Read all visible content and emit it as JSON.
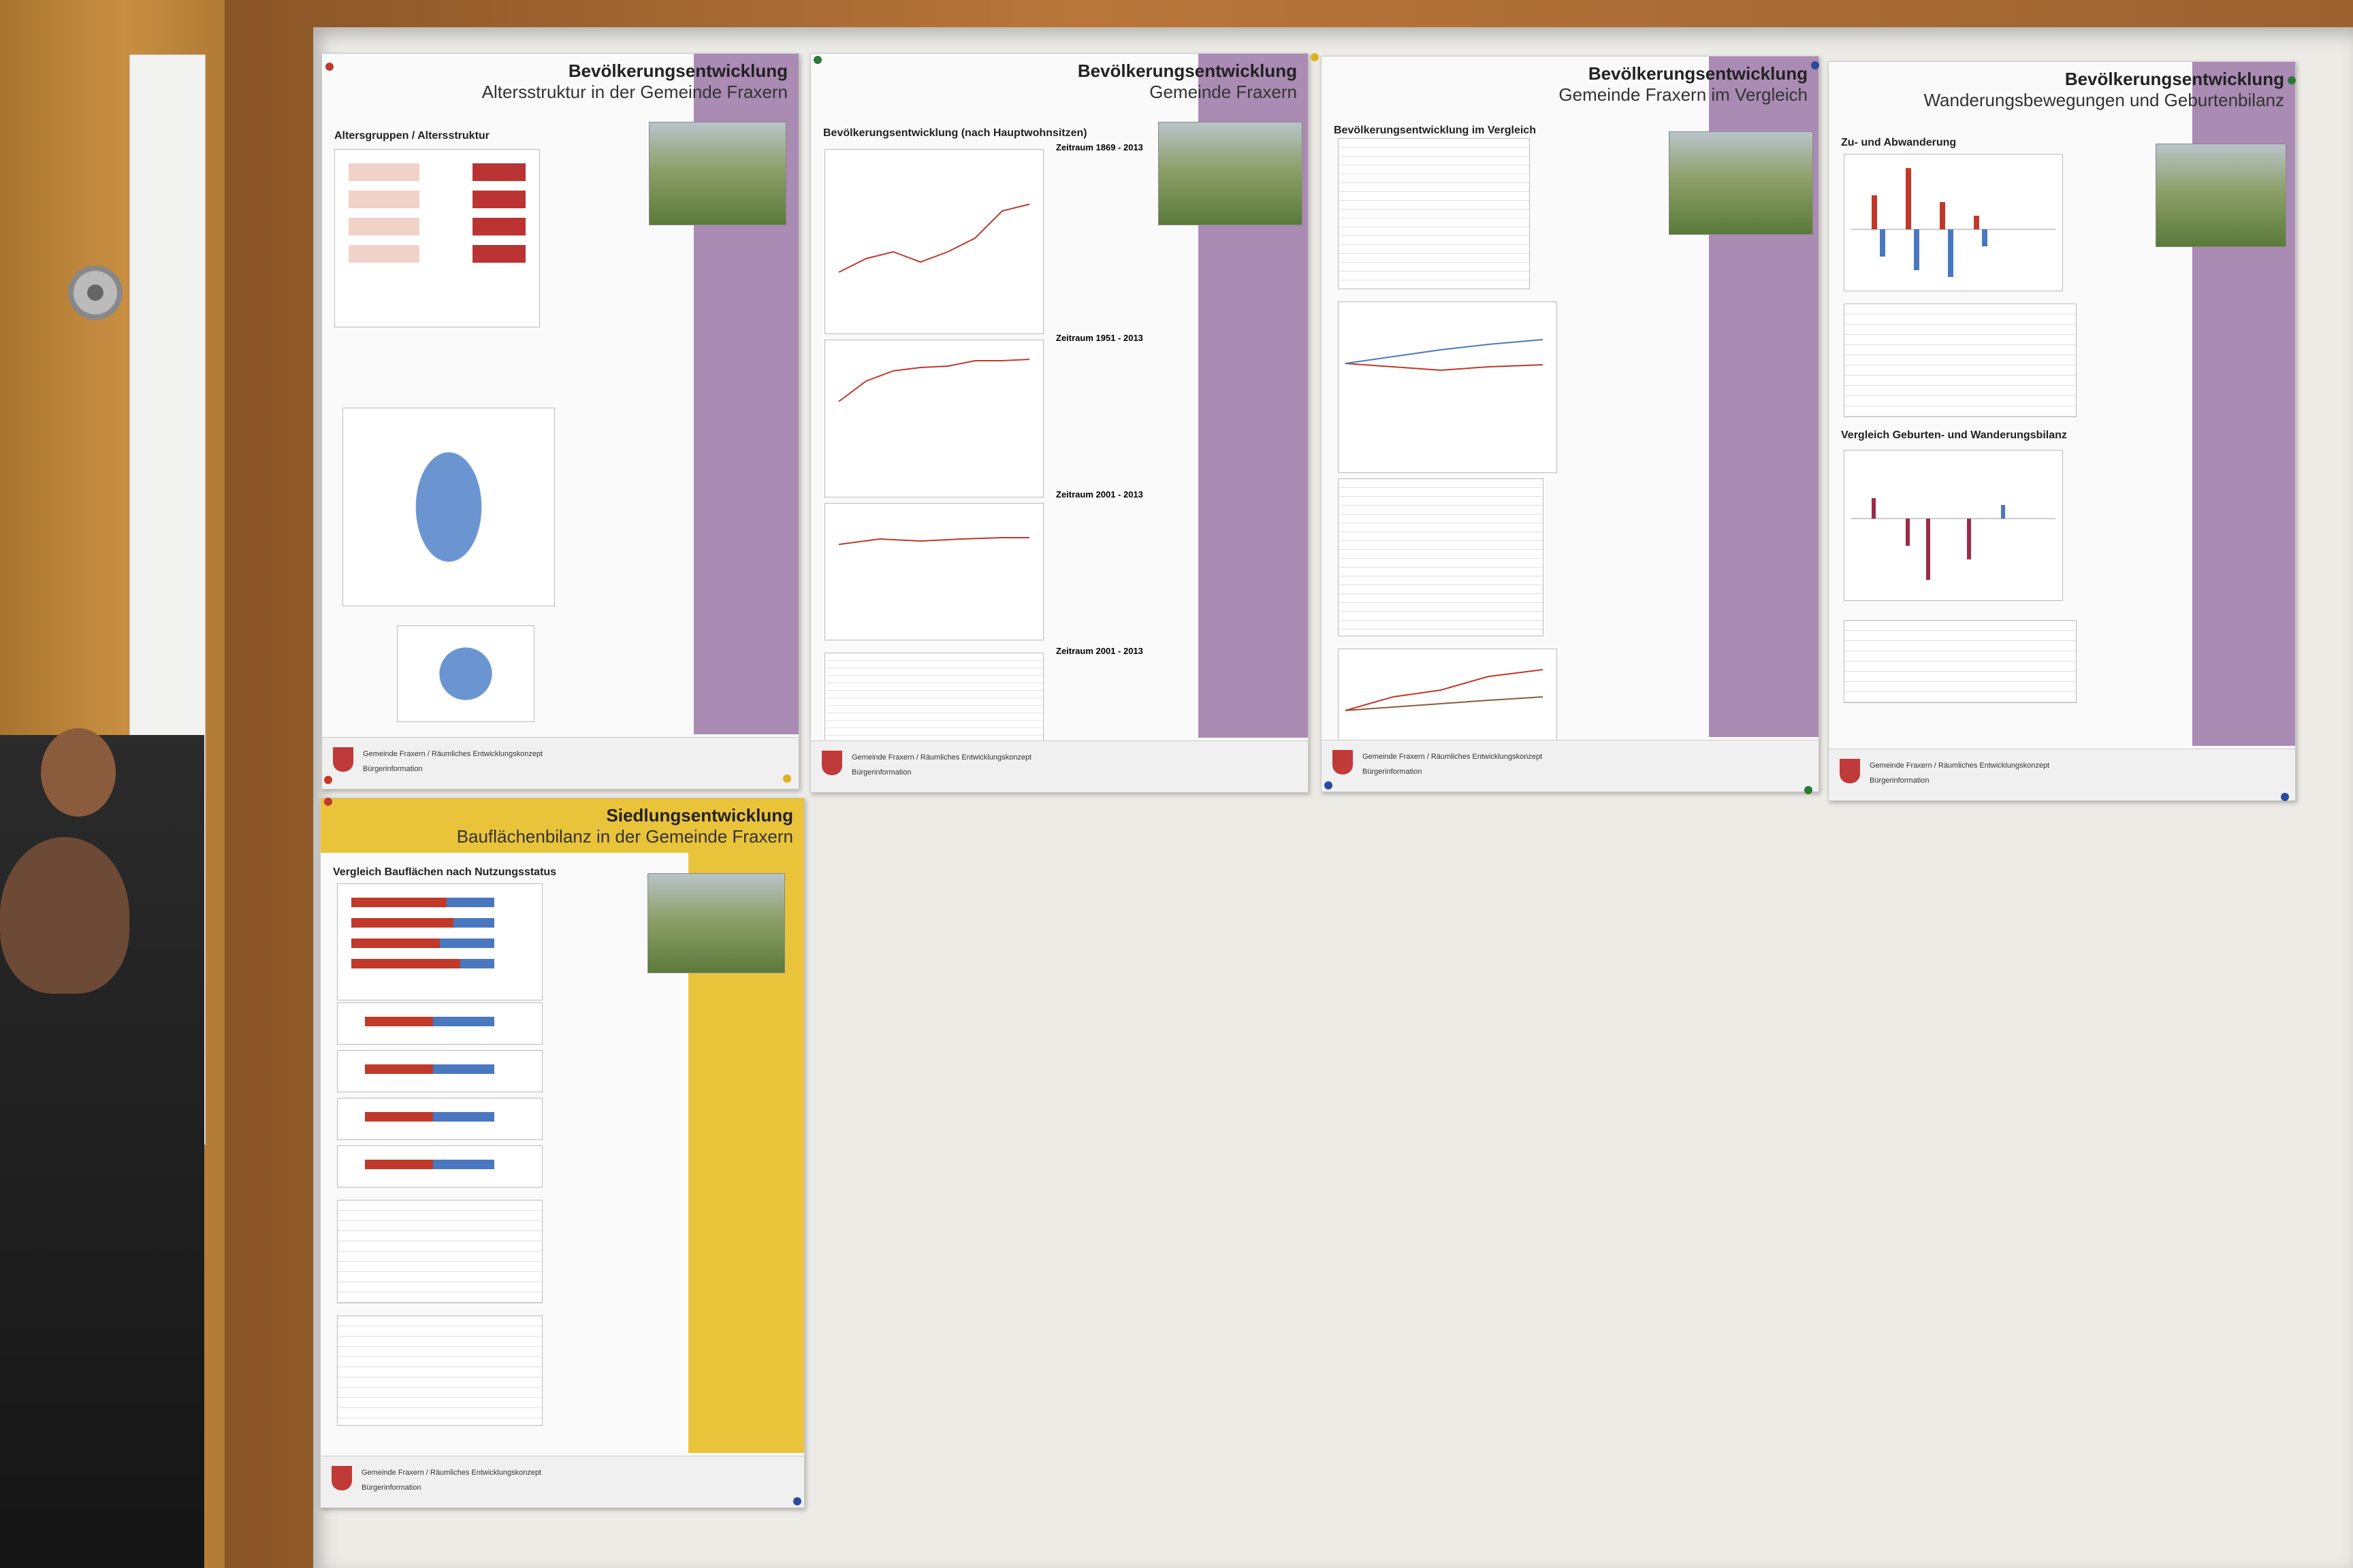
{
  "posters": [
    {
      "title": "Bevölkerungsentwicklung",
      "subtitle": "Altersstruktur in der Gemeinde Fraxern",
      "section": "Altersgruppen / Altersstruktur",
      "footer": "Gemeinde Fraxern / Räumliches Entwicklungskonzept",
      "footer2": "Bürgerinformation"
    },
    {
      "title": "Bevölkerungsentwicklung",
      "subtitle": "Gemeinde Fraxern",
      "section": "Bevölkerungsentwicklung (nach Hauptwohnsitzen)",
      "periods": [
        "Zeitraum 1869 - 2013",
        "Zeitraum 1951 - 2013",
        "Zeitraum 2001 - 2013",
        "Zeitraum 2001 - 2013"
      ],
      "footer": "Gemeinde Fraxern / Räumliches Entwicklungskonzept",
      "footer2": "Bürgerinformation"
    },
    {
      "title": "Bevölkerungsentwicklung",
      "subtitle": "Gemeinde Fraxern im Vergleich",
      "section": "Bevölkerungsentwicklung im Vergleich",
      "footer": "Gemeinde Fraxern / Räumliches Entwicklungskonzept",
      "footer2": "Bürgerinformation"
    },
    {
      "title": "Bevölkerungsentwicklung",
      "subtitle": "Wanderungsbewegungen und Geburtenbilanz",
      "section": "Zu- und Abwanderung",
      "section2": "Vergleich Geburten- und Wanderungsbilanz",
      "footer": "Gemeinde Fraxern / Räumliches Entwicklungskonzept",
      "footer2": "Bürgerinformation"
    },
    {
      "title": "Siedlungsentwicklung",
      "subtitle": "Bauflächenbilanz in der Gemeinde Fraxern",
      "section": "Vergleich Bauflächen nach Nutzungsstatus",
      "footer": "Gemeinde Fraxern / Räumliches Entwicklungskonzept",
      "footer2": "Bürgerinformation"
    }
  ],
  "colors": {
    "violet": "#a98bb3",
    "yellow": "#e9c33a",
    "red": "#c0392b",
    "blue": "#4a78c0"
  }
}
